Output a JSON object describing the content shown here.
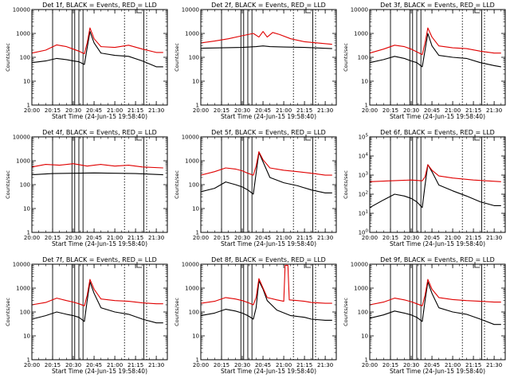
{
  "chart_data": [
    {
      "type": "line",
      "title": "Det 1f, BLACK = Events, RED = LLD",
      "xlabel": "Start Time (24-Jun-15 19:58:40)",
      "ylabel": "Counts/sec",
      "x_ticks": [
        "20:00",
        "20:15",
        "20:30",
        "20:45",
        "21:00",
        "21:15",
        "21:30"
      ],
      "y_scale": "log",
      "y_ticks": [
        "1",
        "10",
        "100",
        "1000",
        "10000"
      ],
      "ylim": [
        1,
        10000
      ],
      "solid_markers": [
        "20:15",
        "20:29",
        "20:31",
        "20:34",
        "20:37",
        "21:21"
      ],
      "dotted_markers": [
        "21:07",
        "21:23"
      ],
      "series": [
        {
          "color": "#000000",
          "x": [
            "20:00",
            "20:10",
            "20:18",
            "20:25",
            "20:30",
            "20:34",
            "20:38",
            "20:40",
            "20:42",
            "20:45",
            "20:50",
            "21:00",
            "21:10",
            "21:20",
            "21:30",
            "21:35"
          ],
          "values": [
            60,
            70,
            90,
            80,
            70,
            65,
            50,
            250,
            1200,
            400,
            150,
            120,
            110,
            70,
            40,
            40
          ]
        },
        {
          "color": "#e00000",
          "x": [
            "20:00",
            "20:10",
            "20:18",
            "20:25",
            "20:30",
            "20:34",
            "20:38",
            "20:40",
            "20:42",
            "20:45",
            "20:50",
            "21:00",
            "21:10",
            "21:20",
            "21:30",
            "21:35"
          ],
          "values": [
            150,
            200,
            330,
            280,
            220,
            180,
            140,
            400,
            1700,
            600,
            280,
            260,
            320,
            220,
            160,
            160
          ]
        }
      ]
    },
    {
      "type": "line",
      "title": "Det 2f, BLACK = Events, RED = LLD",
      "xlabel": "Start Time (24-Jun-15 19:58:40)",
      "ylabel": "Counts/sec",
      "x_ticks": [
        "20:00",
        "20:15",
        "20:30",
        "20:45",
        "21:00",
        "21:15",
        "21:30"
      ],
      "y_scale": "log",
      "y_ticks": [
        "1",
        "10",
        "100",
        "1000",
        "10000"
      ],
      "ylim": [
        1,
        10000
      ],
      "solid_markers": [
        "20:15",
        "20:29",
        "20:31",
        "20:34",
        "20:37",
        "21:21"
      ],
      "dotted_markers": [
        "21:07",
        "21:23"
      ],
      "series": [
        {
          "color": "#000000",
          "x": [
            "20:00",
            "20:15",
            "20:30",
            "20:40",
            "20:45",
            "20:50",
            "21:00",
            "21:15",
            "21:35"
          ],
          "values": [
            240,
            250,
            260,
            280,
            300,
            280,
            270,
            260,
            230
          ]
        },
        {
          "color": "#e00000",
          "x": [
            "20:00",
            "20:10",
            "20:20",
            "20:30",
            "20:38",
            "20:42",
            "20:45",
            "20:48",
            "20:52",
            "20:57",
            "21:05",
            "21:15",
            "21:35"
          ],
          "values": [
            400,
            480,
            600,
            800,
            1000,
            700,
            1200,
            700,
            1100,
            900,
            600,
            450,
            350
          ]
        }
      ]
    },
    {
      "type": "line",
      "title": "Det 3f, BLACK = Events, RED = LLD",
      "xlabel": "Start Time (24-Jun-15 19:58:40)",
      "ylabel": "Counts/sec",
      "x_ticks": [
        "20:00",
        "20:15",
        "20:30",
        "20:45",
        "21:00",
        "21:15",
        "21:30"
      ],
      "y_scale": "log",
      "y_ticks": [
        "1",
        "10",
        "100",
        "1000",
        "10000"
      ],
      "ylim": [
        1,
        10000
      ],
      "solid_markers": [
        "20:15",
        "20:29",
        "20:31",
        "20:34",
        "20:37",
        "21:21"
      ],
      "dotted_markers": [
        "21:07",
        "21:23"
      ],
      "series": [
        {
          "color": "#000000",
          "x": [
            "20:00",
            "20:10",
            "20:18",
            "20:25",
            "20:30",
            "20:34",
            "20:38",
            "20:40",
            "20:42",
            "20:45",
            "20:50",
            "21:00",
            "21:10",
            "21:20",
            "21:30",
            "21:35"
          ],
          "values": [
            60,
            80,
            110,
            90,
            70,
            60,
            40,
            200,
            1000,
            300,
            120,
            100,
            90,
            60,
            45,
            40
          ]
        },
        {
          "color": "#e00000",
          "x": [
            "20:00",
            "20:10",
            "20:18",
            "20:25",
            "20:30",
            "20:34",
            "20:38",
            "20:40",
            "20:42",
            "20:45",
            "20:50",
            "21:00",
            "21:10",
            "21:20",
            "21:30",
            "21:35"
          ],
          "values": [
            150,
            220,
            320,
            280,
            220,
            170,
            130,
            400,
            1700,
            700,
            300,
            250,
            230,
            180,
            150,
            150
          ]
        }
      ]
    },
    {
      "type": "line",
      "title": "Det 4f, BLACK = Events, RED = LLD",
      "xlabel": "Start Time (24-Jun-15 19:58:40)",
      "ylabel": "Counts/sec",
      "x_ticks": [
        "20:00",
        "20:15",
        "20:30",
        "20:45",
        "21:00",
        "21:15",
        "21:30"
      ],
      "y_scale": "log",
      "y_ticks": [
        "1",
        "10",
        "100",
        "1000",
        "10000"
      ],
      "ylim": [
        1,
        10000
      ],
      "solid_markers": [
        "20:15",
        "20:29",
        "20:31",
        "20:34",
        "20:37",
        "21:21"
      ],
      "dotted_markers": [
        "21:07",
        "21:23"
      ],
      "series": [
        {
          "color": "#000000",
          "x": [
            "20:00",
            "20:15",
            "20:30",
            "20:45",
            "21:00",
            "21:15",
            "21:35"
          ],
          "values": [
            260,
            290,
            300,
            310,
            300,
            290,
            260
          ]
        },
        {
          "color": "#e00000",
          "x": [
            "20:00",
            "20:10",
            "20:20",
            "20:30",
            "20:40",
            "20:45",
            "20:50",
            "21:00",
            "21:10",
            "21:20",
            "21:35"
          ],
          "values": [
            550,
            700,
            650,
            750,
            600,
            650,
            700,
            600,
            650,
            550,
            500
          ]
        }
      ]
    },
    {
      "type": "line",
      "title": "Det 5f, BLACK = Events, RED = LLD",
      "xlabel": "Start Time (24-Jun-15 19:58:40)",
      "ylabel": "Counts/sec",
      "x_ticks": [
        "20:00",
        "20:15",
        "20:30",
        "20:45",
        "21:00",
        "21:15",
        "21:30"
      ],
      "y_scale": "log",
      "y_ticks": [
        "1",
        "10",
        "100",
        "1000",
        "10000"
      ],
      "ylim": [
        1,
        10000
      ],
      "solid_markers": [
        "20:15",
        "20:29",
        "20:31",
        "20:34",
        "20:37",
        "21:21"
      ],
      "dotted_markers": [
        "21:07",
        "21:23"
      ],
      "series": [
        {
          "color": "#000000",
          "x": [
            "20:00",
            "20:10",
            "20:18",
            "20:25",
            "20:30",
            "20:34",
            "20:38",
            "20:40",
            "20:42",
            "20:45",
            "20:50",
            "21:00",
            "21:10",
            "21:20",
            "21:30",
            "21:35"
          ],
          "values": [
            50,
            70,
            130,
            100,
            80,
            60,
            40,
            300,
            2200,
            900,
            200,
            120,
            90,
            60,
            45,
            45
          ]
        },
        {
          "color": "#e00000",
          "x": [
            "20:00",
            "20:10",
            "20:18",
            "20:25",
            "20:30",
            "20:34",
            "20:38",
            "20:40",
            "20:42",
            "20:45",
            "20:50",
            "21:00",
            "21:10",
            "21:20",
            "21:30",
            "21:35"
          ],
          "values": [
            250,
            350,
            500,
            450,
            380,
            300,
            250,
            600,
            2400,
            1100,
            500,
            400,
            350,
            300,
            250,
            250
          ]
        }
      ]
    },
    {
      "type": "line",
      "title": "Det 6f, BLACK = Events, RED = LLD",
      "xlabel": "Start Time (24-Jun-15 19:58:40)",
      "ylabel": "Counts/sec",
      "x_ticks": [
        "20:00",
        "20:15",
        "20:30",
        "20:45",
        "21:00",
        "21:15",
        "21:30"
      ],
      "y_scale": "log",
      "y_ticks": [
        "10^0",
        "10^1",
        "10^2",
        "10^3",
        "10^4",
        "10^5"
      ],
      "ylim": [
        1,
        100000
      ],
      "solid_markers": [
        "20:15",
        "20:29",
        "20:31",
        "20:34",
        "20:37",
        "21:21"
      ],
      "dotted_markers": [
        "21:07",
        "21:23"
      ],
      "series": [
        {
          "color": "#000000",
          "x": [
            "20:00",
            "20:10",
            "20:18",
            "20:25",
            "20:30",
            "20:34",
            "20:38",
            "20:40",
            "20:42",
            "20:45",
            "20:50",
            "21:00",
            "21:10",
            "21:20",
            "21:30",
            "21:35"
          ],
          "values": [
            20,
            50,
            100,
            80,
            60,
            40,
            20,
            300,
            3500,
            1500,
            300,
            150,
            80,
            40,
            25,
            25
          ]
        },
        {
          "color": "#e00000",
          "x": [
            "20:00",
            "20:15",
            "20:30",
            "20:38",
            "20:40",
            "20:42",
            "20:45",
            "20:50",
            "21:00",
            "21:15",
            "21:35"
          ],
          "values": [
            450,
            500,
            550,
            500,
            800,
            3500,
            1800,
            900,
            700,
            550,
            450
          ]
        }
      ]
    },
    {
      "type": "line",
      "title": "Det 7f, BLACK = Events, RED = LLD",
      "xlabel": "Start Time (24-Jun-15 19:58:40)",
      "ylabel": "Counts/sec",
      "x_ticks": [
        "20:00",
        "20:15",
        "20:30",
        "20:45",
        "21:00",
        "21:15",
        "21:30"
      ],
      "y_scale": "log",
      "y_ticks": [
        "1",
        "10",
        "100",
        "1000",
        "10000"
      ],
      "ylim": [
        1,
        10000
      ],
      "solid_markers": [
        "20:15",
        "20:29",
        "20:31",
        "20:34",
        "20:37",
        "21:21"
      ],
      "dotted_markers": [
        "21:07",
        "21:23"
      ],
      "series": [
        {
          "color": "#000000",
          "x": [
            "20:00",
            "20:10",
            "20:18",
            "20:25",
            "20:30",
            "20:34",
            "20:38",
            "20:40",
            "20:42",
            "20:45",
            "20:50",
            "21:00",
            "21:10",
            "21:20",
            "21:30",
            "21:35"
          ],
          "values": [
            50,
            70,
            100,
            80,
            70,
            60,
            40,
            300,
            1800,
            600,
            150,
            100,
            80,
            50,
            35,
            35
          ]
        },
        {
          "color": "#e00000",
          "x": [
            "20:00",
            "20:10",
            "20:18",
            "20:25",
            "20:30",
            "20:34",
            "20:38",
            "20:40",
            "20:42",
            "20:45",
            "20:50",
            "21:00",
            "21:10",
            "21:20",
            "21:30",
            "21:35"
          ],
          "values": [
            200,
            250,
            380,
            300,
            260,
            220,
            180,
            500,
            2300,
            900,
            350,
            300,
            280,
            240,
            220,
            220
          ]
        }
      ]
    },
    {
      "type": "line",
      "title": "Det 8f, BLACK = Events, RED = LLD",
      "xlabel": "Start Time (24-Jun-15 19:58:40)",
      "ylabel": "Counts/sec",
      "x_ticks": [
        "20:00",
        "20:15",
        "20:30",
        "20:45",
        "21:00",
        "21:15",
        "21:30"
      ],
      "y_scale": "log",
      "y_ticks": [
        "1",
        "10",
        "100",
        "1000",
        "10000"
      ],
      "ylim": [
        1,
        10000
      ],
      "solid_markers": [
        "20:15",
        "20:29",
        "20:31",
        "20:34",
        "20:37",
        "21:21"
      ],
      "dotted_markers": [
        "21:07",
        "21:23"
      ],
      "series": [
        {
          "color": "#000000",
          "x": [
            "20:00",
            "20:10",
            "20:18",
            "20:25",
            "20:30",
            "20:34",
            "20:38",
            "20:40",
            "20:42",
            "20:45",
            "20:48",
            "20:55",
            "21:05",
            "21:15",
            "21:20",
            "21:30",
            "21:35"
          ],
          "values": [
            70,
            90,
            130,
            110,
            90,
            70,
            50,
            150,
            2000,
            900,
            300,
            120,
            70,
            60,
            50,
            45,
            45
          ]
        },
        {
          "color": "#e00000",
          "x": [
            "20:00",
            "20:10",
            "20:18",
            "20:25",
            "20:30",
            "20:34",
            "20:38",
            "20:40",
            "20:42",
            "20:45",
            "20:48",
            "20:55",
            "21:00",
            "21:01",
            "21:02",
            "21:03",
            "21:04",
            "21:10",
            "21:15",
            "21:20",
            "21:30",
            "21:35"
          ],
          "values": [
            230,
            280,
            400,
            350,
            300,
            250,
            200,
            400,
            2500,
            1000,
            400,
            320,
            280,
            9000,
            9000,
            9000,
            320,
            300,
            280,
            250,
            230,
            230
          ]
        }
      ]
    },
    {
      "type": "line",
      "title": "Det 9f, BLACK = Events, RED = LLD",
      "xlabel": "Start Time (24-Jun-15 19:58:40)",
      "ylabel": "Counts/sec",
      "x_ticks": [
        "20:00",
        "20:15",
        "20:30",
        "20:45",
        "21:00",
        "21:15",
        "21:30"
      ],
      "y_scale": "log",
      "y_ticks": [
        "1",
        "10",
        "100",
        "1000",
        "10000"
      ],
      "ylim": [
        1,
        10000
      ],
      "solid_markers": [
        "20:15",
        "20:29",
        "20:31",
        "20:34",
        "20:37",
        "21:21"
      ],
      "dotted_markers": [
        "21:07",
        "21:23"
      ],
      "series": [
        {
          "color": "#000000",
          "x": [
            "20:00",
            "20:10",
            "20:18",
            "20:25",
            "20:30",
            "20:34",
            "20:38",
            "20:40",
            "20:42",
            "20:45",
            "20:50",
            "21:00",
            "21:10",
            "21:20",
            "21:30",
            "21:35"
          ],
          "values": [
            55,
            75,
            110,
            90,
            75,
            60,
            40,
            300,
            1800,
            600,
            150,
            100,
            80,
            50,
            30,
            30
          ]
        },
        {
          "color": "#e00000",
          "x": [
            "20:00",
            "20:10",
            "20:18",
            "20:25",
            "20:30",
            "20:34",
            "20:38",
            "20:40",
            "20:42",
            "20:45",
            "20:50",
            "21:00",
            "21:10",
            "21:20",
            "21:30",
            "21:35"
          ],
          "values": [
            200,
            260,
            380,
            320,
            270,
            220,
            180,
            500,
            2300,
            900,
            400,
            330,
            300,
            280,
            260,
            260
          ]
        }
      ]
    }
  ]
}
